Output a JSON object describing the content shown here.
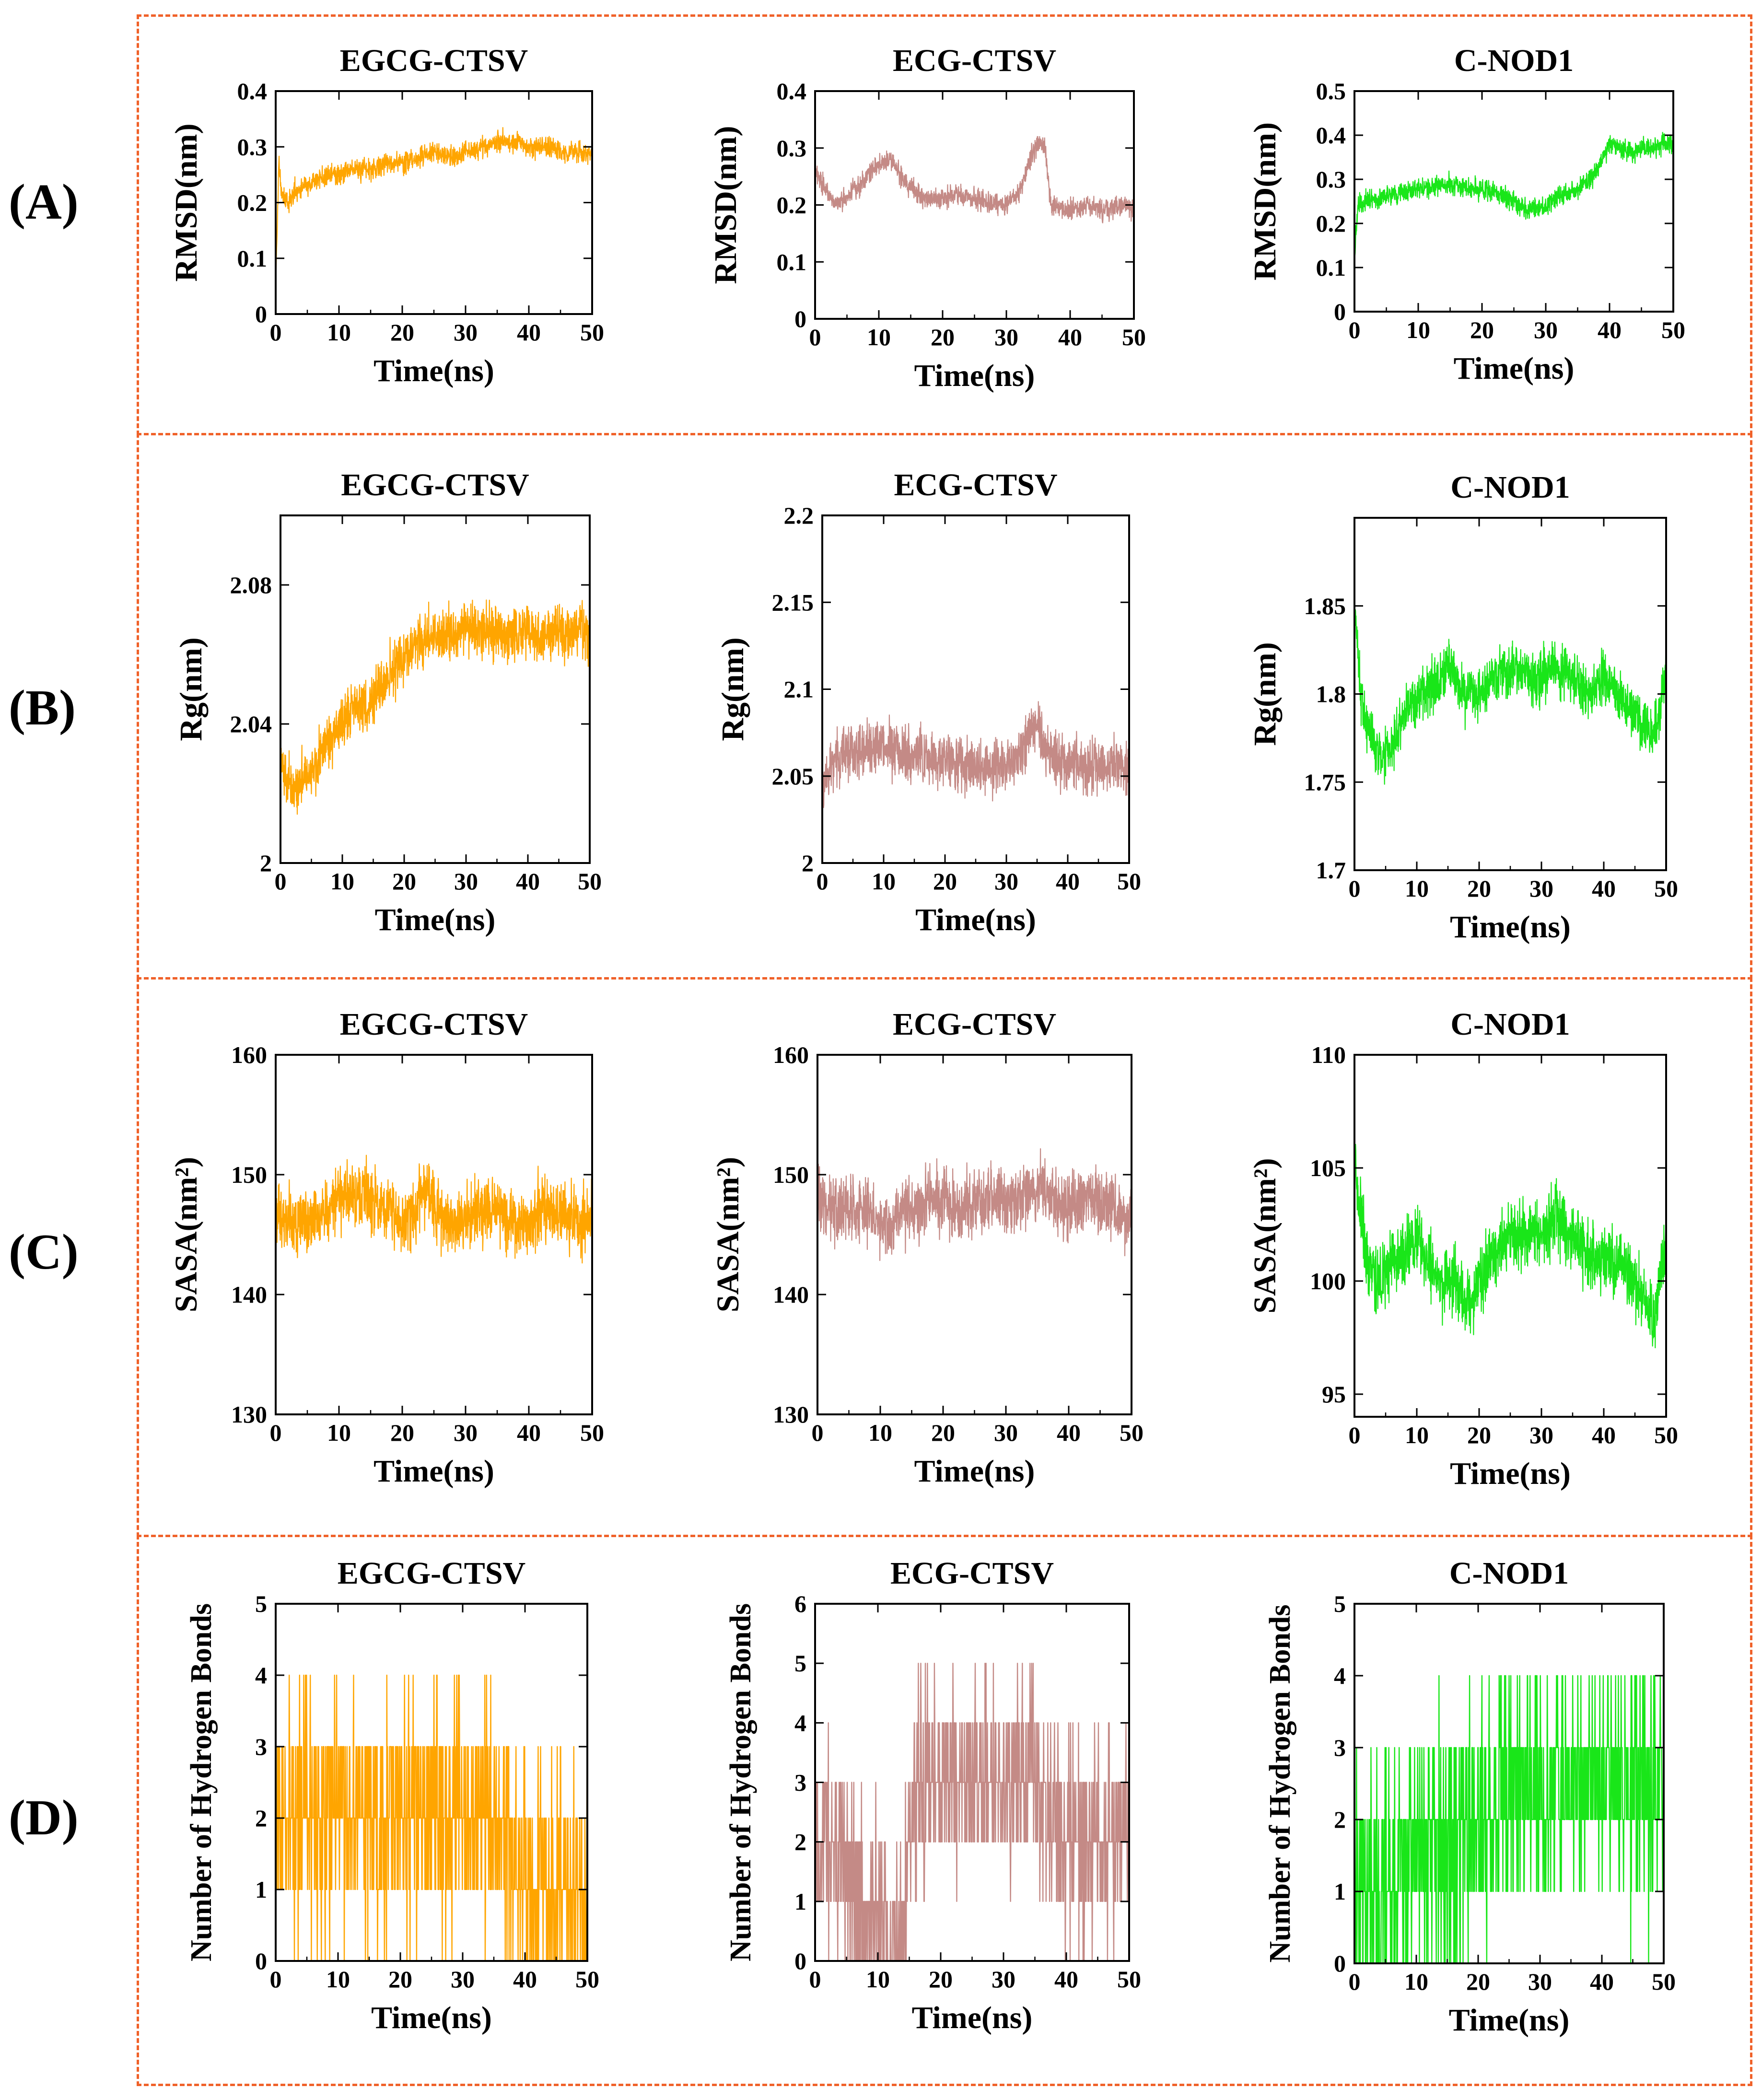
{
  "figure": {
    "row_labels": [
      "(A)",
      "(B)",
      "(C)",
      "(D)"
    ],
    "series_colors": {
      "EGCG-CTSV": "#ffa500",
      "ECG-CTSV": "#c48a86",
      "C-NOD1": "#19e619"
    },
    "border_color": "#f0622a"
  },
  "chart_data": [
    {
      "id": "A1",
      "type": "line",
      "title": "EGCG-CTSV",
      "xlabel": "Time(ns)",
      "ylabel": "RMSD(nm)",
      "xlim": [
        0,
        50
      ],
      "ylim": [
        0,
        0.4
      ],
      "xticks": [
        "0",
        "10",
        "20",
        "30",
        "40",
        "50"
      ],
      "yticks": [
        "0",
        "0.1",
        "0.2",
        "0.3",
        "0.4"
      ],
      "color": "#ffa500",
      "series": [
        {
          "x": [
            0,
            0.5,
            1,
            2,
            3,
            5,
            8,
            10,
            12,
            15,
            18,
            20,
            22,
            25,
            28,
            30,
            33,
            35,
            38,
            40,
            43,
            45,
            48,
            50
          ],
          "values": [
            0.05,
            0.27,
            0.21,
            0.2,
            0.22,
            0.23,
            0.25,
            0.25,
            0.26,
            0.26,
            0.27,
            0.27,
            0.28,
            0.29,
            0.28,
            0.29,
            0.3,
            0.31,
            0.31,
            0.3,
            0.3,
            0.29,
            0.29,
            0.29
          ]
        }
      ]
    },
    {
      "id": "A2",
      "type": "line",
      "title": "ECG-CTSV",
      "xlabel": "Time(ns)",
      "ylabel": "RMSD(nm)",
      "xlim": [
        0,
        50
      ],
      "ylim": [
        0,
        0.4
      ],
      "xticks": [
        "0",
        "10",
        "20",
        "30",
        "40",
        "50"
      ],
      "yticks": [
        "0",
        "0.1",
        "0.2",
        "0.3",
        "0.4"
      ],
      "color": "#c48a86",
      "series": [
        {
          "x": [
            0,
            1,
            3,
            5,
            8,
            10,
            12,
            14,
            16,
            18,
            20,
            22,
            25,
            28,
            30,
            32,
            34,
            35,
            36,
            37,
            40,
            43,
            45,
            48,
            50
          ],
          "values": [
            0.26,
            0.24,
            0.2,
            0.21,
            0.25,
            0.27,
            0.28,
            0.24,
            0.22,
            0.21,
            0.21,
            0.22,
            0.21,
            0.2,
            0.2,
            0.22,
            0.29,
            0.31,
            0.3,
            0.2,
            0.19,
            0.2,
            0.19,
            0.2,
            0.19
          ]
        }
      ]
    },
    {
      "id": "A3",
      "type": "line",
      "title": "C-NOD1",
      "xlabel": "Time(ns)",
      "ylabel": "RMSD(nm)",
      "xlim": [
        0,
        50
      ],
      "ylim": [
        0,
        0.5
      ],
      "xticks": [
        "0",
        "10",
        "20",
        "30",
        "40",
        "50"
      ],
      "yticks": [
        "0",
        "0.1",
        "0.2",
        "0.3",
        "0.4",
        "0.5"
      ],
      "color": "#19e619",
      "series": [
        {
          "x": [
            0,
            0.5,
            2,
            5,
            8,
            10,
            12,
            15,
            18,
            20,
            22,
            25,
            27,
            28,
            30,
            32,
            35,
            37,
            38,
            40,
            42,
            44,
            46,
            48,
            50
          ],
          "values": [
            0.12,
            0.24,
            0.25,
            0.26,
            0.27,
            0.28,
            0.28,
            0.29,
            0.28,
            0.28,
            0.27,
            0.25,
            0.23,
            0.24,
            0.24,
            0.26,
            0.28,
            0.3,
            0.32,
            0.38,
            0.37,
            0.36,
            0.37,
            0.38,
            0.38
          ]
        }
      ]
    },
    {
      "id": "B1",
      "type": "line",
      "title": "EGCG-CTSV",
      "xlabel": "Time(ns)",
      "ylabel": "Rg(nm)",
      "xlim": [
        0,
        50
      ],
      "ylim": [
        2,
        2.1
      ],
      "xticks": [
        "0",
        "10",
        "20",
        "30",
        "40",
        "50"
      ],
      "yticks": [
        "2",
        "2.04",
        "2.08"
      ],
      "color": "#ffa500",
      "series": [
        {
          "x": [
            0,
            2,
            4,
            6,
            8,
            10,
            12,
            14,
            16,
            18,
            20,
            22,
            24,
            26,
            28,
            30,
            32,
            34,
            36,
            38,
            40,
            42,
            44,
            46,
            48,
            50
          ],
          "values": [
            2.03,
            2.02,
            2.025,
            2.03,
            2.035,
            2.04,
            2.045,
            2.045,
            2.05,
            2.055,
            2.06,
            2.062,
            2.065,
            2.066,
            2.065,
            2.068,
            2.066,
            2.067,
            2.065,
            2.066,
            2.066,
            2.065,
            2.067,
            2.066,
            2.068,
            2.066
          ]
        }
      ]
    },
    {
      "id": "B2",
      "type": "line",
      "title": "ECG-CTSV",
      "xlabel": "Time(ns)",
      "ylabel": "Rg(nm)",
      "xlim": [
        0,
        50
      ],
      "ylim": [
        2,
        2.2
      ],
      "xticks": [
        "0",
        "10",
        "20",
        "30",
        "40",
        "50"
      ],
      "yticks": [
        "2",
        "2.05",
        "2.1",
        "2.15",
        "2.2"
      ],
      "color": "#c48a86",
      "series": [
        {
          "x": [
            0,
            2,
            5,
            8,
            10,
            12,
            15,
            18,
            20,
            22,
            25,
            28,
            30,
            32,
            34,
            35,
            36,
            38,
            40,
            42,
            45,
            48,
            50
          ],
          "values": [
            2.04,
            2.06,
            2.065,
            2.065,
            2.068,
            2.066,
            2.062,
            2.06,
            2.058,
            2.057,
            2.056,
            2.055,
            2.058,
            2.06,
            2.075,
            2.082,
            2.068,
            2.06,
            2.058,
            2.056,
            2.057,
            2.056,
            2.055
          ]
        }
      ]
    },
    {
      "id": "B3",
      "type": "line",
      "title": "C-NOD1",
      "xlabel": "Time(ns)",
      "ylabel": "Rg(nm)",
      "xlim": [
        0,
        50
      ],
      "ylim": [
        1.7,
        1.9
      ],
      "xticks": [
        "0",
        "10",
        "20",
        "30",
        "40",
        "50"
      ],
      "yticks": [
        "1.7",
        "1.75",
        "1.8",
        "1.85"
      ],
      "color": "#19e619",
      "series": [
        {
          "x": [
            0,
            1,
            2,
            4,
            6,
            8,
            10,
            12,
            14,
            15,
            17,
            20,
            22,
            25,
            28,
            30,
            32,
            35,
            38,
            40,
            42,
            45,
            47,
            48,
            50
          ],
          "values": [
            1.85,
            1.8,
            1.78,
            1.765,
            1.77,
            1.79,
            1.8,
            1.8,
            1.81,
            1.82,
            1.8,
            1.8,
            1.81,
            1.815,
            1.81,
            1.81,
            1.815,
            1.81,
            1.8,
            1.81,
            1.8,
            1.79,
            1.78,
            1.775,
            1.81
          ]
        }
      ]
    },
    {
      "id": "C1",
      "type": "line",
      "title": "EGCG-CTSV",
      "xlabel": "Time(ns)",
      "ylabel": "SASA(nm²)",
      "xlim": [
        0,
        50
      ],
      "ylim": [
        130,
        160
      ],
      "xticks": [
        "0",
        "10",
        "20",
        "30",
        "40",
        "50"
      ],
      "yticks": [
        "130",
        "140",
        "150",
        "160"
      ],
      "color": "#ffa500",
      "series": [
        {
          "x": [
            0,
            2,
            5,
            8,
            10,
            12,
            15,
            18,
            20,
            22,
            23,
            25,
            28,
            30,
            32,
            35,
            38,
            40,
            42,
            45,
            48,
            50
          ],
          "values": [
            147,
            146,
            146,
            147,
            148,
            148,
            148,
            147,
            146,
            147,
            149,
            147,
            146,
            146,
            147,
            147,
            146,
            146,
            147,
            147,
            146,
            147
          ]
        }
      ]
    },
    {
      "id": "C2",
      "type": "line",
      "title": "ECG-CTSV",
      "xlabel": "Time(ns)",
      "ylabel": "SASA(nm²)",
      "xlim": [
        0,
        50
      ],
      "ylim": [
        130,
        160
      ],
      "xticks": [
        "0",
        "10",
        "20",
        "30",
        "40",
        "50"
      ],
      "yticks": [
        "130",
        "140",
        "150",
        "160"
      ],
      "color": "#c48a86",
      "series": [
        {
          "x": [
            0,
            2,
            5,
            8,
            10,
            12,
            15,
            18,
            20,
            22,
            25,
            28,
            30,
            32,
            35,
            38,
            40,
            42,
            45,
            48,
            50
          ],
          "values": [
            148,
            147,
            147,
            147,
            146,
            146,
            147,
            148,
            148,
            147,
            148,
            148,
            148,
            148,
            149,
            148,
            147,
            148,
            148,
            147,
            146
          ]
        }
      ]
    },
    {
      "id": "C3",
      "type": "line",
      "title": "C-NOD1",
      "xlabel": "Time(ns)",
      "ylabel": "SASA(nm²)",
      "xlim": [
        0,
        50
      ],
      "ylim": [
        94,
        110
      ],
      "xticks": [
        "0",
        "10",
        "20",
        "30",
        "40",
        "50"
      ],
      "yticks": [
        "95",
        "100",
        "105",
        "110"
      ],
      "color": "#19e619",
      "series": [
        {
          "x": [
            0,
            0.5,
            2,
            4,
            6,
            8,
            10,
            12,
            14,
            16,
            18,
            20,
            22,
            25,
            28,
            30,
            32,
            35,
            38,
            40,
            42,
            45,
            47,
            48,
            50
          ],
          "values": [
            106,
            104,
            101,
            100,
            101,
            101,
            102,
            101,
            100,
            100,
            99,
            100,
            101,
            102,
            102,
            102,
            103,
            102,
            101,
            101,
            101,
            100,
            99,
            98,
            102
          ]
        }
      ]
    },
    {
      "id": "D1",
      "type": "line",
      "title": "EGCG-CTSV",
      "xlabel": "Time(ns)",
      "ylabel": "Number of Hydrogen Bonds",
      "xlim": [
        0,
        50
      ],
      "ylim": [
        0,
        5
      ],
      "xticks": [
        "0",
        "10",
        "20",
        "30",
        "40",
        "50"
      ],
      "yticks": [
        "0",
        "1",
        "2",
        "3",
        "4",
        "5"
      ],
      "color": "#ffa500",
      "series": [
        {
          "x": [
            0,
            2,
            4,
            6,
            8,
            10,
            15,
            20,
            25,
            30,
            35,
            38,
            40,
            45,
            50
          ],
          "values": [
            2,
            2,
            2,
            2,
            2,
            2,
            2,
            2,
            2,
            2,
            2,
            1.5,
            1,
            1,
            1
          ]
        }
      ]
    },
    {
      "id": "D2",
      "type": "line",
      "title": "ECG-CTSV",
      "xlabel": "Time(ns)",
      "ylabel": "Number of Hydrogen Bonds",
      "xlim": [
        0,
        50
      ],
      "ylim": [
        0,
        6
      ],
      "xticks": [
        "0",
        "10",
        "20",
        "30",
        "40",
        "50"
      ],
      "yticks": [
        "0",
        "1",
        "2",
        "3",
        "4",
        "5",
        "6"
      ],
      "color": "#c48a86",
      "series": [
        {
          "x": [
            0,
            2,
            4,
            6,
            8,
            10,
            12,
            14,
            15,
            16,
            20,
            25,
            30,
            35,
            40,
            45,
            50
          ],
          "values": [
            2,
            2,
            2,
            1,
            1,
            0.5,
            0.5,
            0.5,
            2,
            3,
            3,
            3,
            3,
            3,
            2,
            2,
            2
          ]
        }
      ]
    },
    {
      "id": "D3",
      "type": "line",
      "title": "C-NOD1",
      "xlabel": "Time(ns)",
      "ylabel": "Number of Hydrogen Bonds",
      "xlim": [
        0,
        50
      ],
      "ylim": [
        0,
        5
      ],
      "xticks": [
        "0",
        "10",
        "20",
        "30",
        "40",
        "50"
      ],
      "yticks": [
        "0",
        "1",
        "2",
        "3",
        "4",
        "5"
      ],
      "color": "#19e619",
      "series": [
        {
          "x": [
            0,
            5,
            10,
            15,
            20,
            25,
            30,
            35,
            40,
            45,
            50
          ],
          "values": [
            1,
            1,
            1.5,
            1.5,
            2,
            2.5,
            2.5,
            2.5,
            2.5,
            2.5,
            2.5
          ]
        }
      ]
    }
  ]
}
